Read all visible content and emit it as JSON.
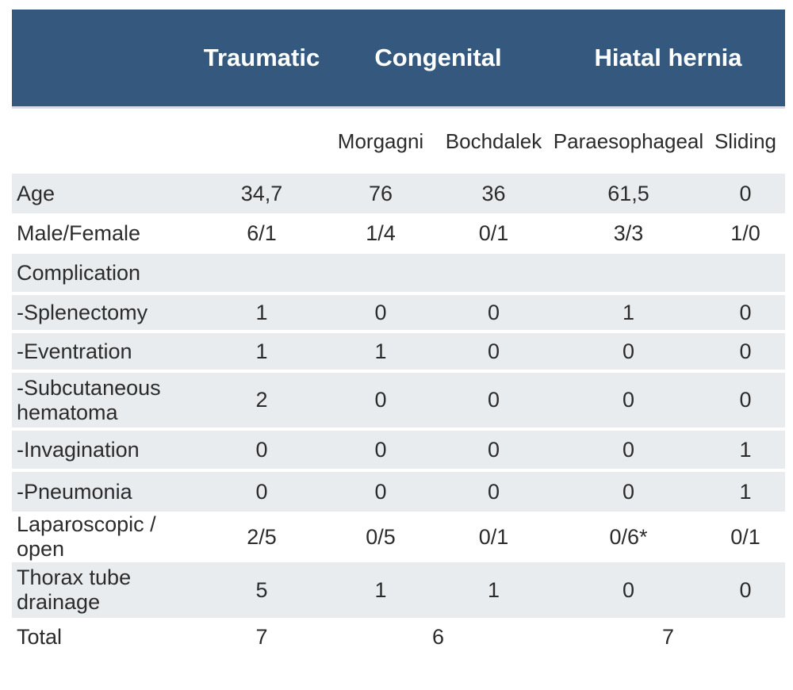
{
  "table": {
    "group_headers": {
      "traumatic": "Traumatic",
      "congenital": "Congenital",
      "hiatal_hernia": "Hiatal hernia"
    },
    "sub_headers": {
      "morgagni": "Morgagni",
      "bochdalek": "Bochdalek",
      "paraesophageal": "Paraesophageal",
      "sliding": "Sliding"
    },
    "rows": [
      {
        "label": "Age",
        "values": [
          "34,7",
          "76",
          "36",
          "61,5",
          "0"
        ]
      },
      {
        "label": "Male/Female",
        "values": [
          "6/1",
          "1/4",
          "0/1",
          "3/3",
          "1/0"
        ]
      },
      {
        "label": "Complication",
        "values": [
          "",
          "",
          "",
          "",
          ""
        ]
      },
      {
        "label": "-Splenectomy",
        "values": [
          "1",
          "0",
          "0",
          "1",
          "0"
        ]
      },
      {
        "label": "-Eventration",
        "values": [
          "1",
          "1",
          "0",
          "0",
          "0"
        ]
      },
      {
        "label": "-Subcutaneous hematoma",
        "values": [
          "2",
          "0",
          "0",
          "0",
          "0"
        ]
      },
      {
        "label": "-Invagination",
        "values": [
          "0",
          "0",
          "0",
          "0",
          "1"
        ]
      },
      {
        "label": "-Pneumonia",
        "values": [
          "0",
          "0",
          "0",
          "0",
          "1"
        ]
      },
      {
        "label": "Laparoscopic / open",
        "values": [
          "2/5",
          "0/5",
          "0/1",
          "0/6*",
          "0/1"
        ]
      },
      {
        "label": "Thorax tube drainage",
        "values": [
          "5",
          "1",
          "1",
          "0",
          "0"
        ]
      }
    ],
    "total_row": {
      "label": "Total",
      "traumatic": "7",
      "congenital": "6",
      "hiatal_hernia": "7"
    },
    "colors": {
      "header_bg": "#35597E",
      "row_stripe": "#E8ECEF",
      "header_text": "#FFFFFF",
      "body_text": "#2B2B2B"
    }
  }
}
